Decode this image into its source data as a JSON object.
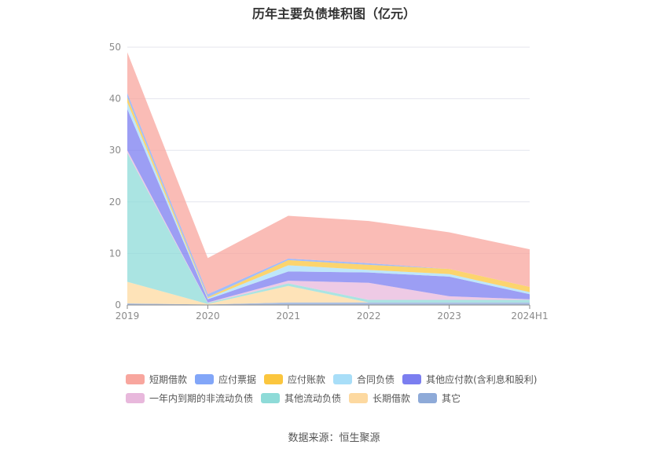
{
  "chart_data": {
    "type": "area",
    "stacked": true,
    "title": "历年主要负债堆积图（亿元）",
    "x": [
      "2019",
      "2020",
      "2021",
      "2022",
      "2023",
      "2024H1"
    ],
    "ylim": [
      0,
      50
    ],
    "yticks": [
      0,
      10,
      20,
      30,
      40,
      50
    ],
    "grid": true,
    "legend_position": "bottom",
    "series": [
      {
        "name": "其它",
        "color": "#8eaad8",
        "values": [
          0.3,
          0.1,
          0.5,
          0.5,
          0.5,
          0.5
        ]
      },
      {
        "name": "长期借款",
        "color": "#fdd9a0",
        "values": [
          4.2,
          0.1,
          3.2,
          0.0,
          0.0,
          0.0
        ]
      },
      {
        "name": "其他流动负债",
        "color": "#8edbd8",
        "values": [
          25.0,
          0.2,
          0.5,
          0.5,
          0.5,
          0.5
        ]
      },
      {
        "name": "一年内到期的非流动负债",
        "color": "#e8b8dc",
        "values": [
          0.5,
          0.1,
          0.5,
          3.3,
          0.7,
          0.1
        ]
      },
      {
        "name": "其他应付款(含利息和股利)",
        "color": "#7b7ef0",
        "values": [
          8.0,
          0.6,
          1.8,
          2.0,
          3.8,
          1.0
        ]
      },
      {
        "name": "合同负债",
        "color": "#a8def8",
        "values": [
          1.3,
          0.2,
          1.2,
          0.5,
          0.5,
          0.4
        ]
      },
      {
        "name": "应付账款",
        "color": "#fbc63e",
        "values": [
          1.0,
          0.2,
          1.0,
          1.0,
          1.0,
          1.0
        ]
      },
      {
        "name": "应付票据",
        "color": "#82a6f8",
        "values": [
          0.8,
          0.6,
          0.3,
          0.3,
          0.0,
          0.0
        ]
      },
      {
        "name": "短期借款",
        "color": "#f8a69e",
        "values": [
          7.9,
          7.0,
          8.3,
          8.2,
          7.1,
          7.3
        ]
      }
    ],
    "source": "数据来源：恒生聚源"
  },
  "legend": {
    "row1": [
      {
        "label": "短期借款",
        "color": "#f8a69e"
      },
      {
        "label": "应付票据",
        "color": "#82a6f8"
      },
      {
        "label": "应付账款",
        "color": "#fbc63e"
      },
      {
        "label": "合同负债",
        "color": "#a8def8"
      },
      {
        "label": "其他应付款(含利息和股利)",
        "color": "#7b7ef0"
      }
    ],
    "row2": [
      {
        "label": "一年内到期的非流动负债",
        "color": "#e8b8dc"
      },
      {
        "label": "其他流动负债",
        "color": "#8edbd8"
      },
      {
        "label": "长期借款",
        "color": "#fdd9a0"
      },
      {
        "label": "其它",
        "color": "#8eaad8"
      }
    ]
  }
}
